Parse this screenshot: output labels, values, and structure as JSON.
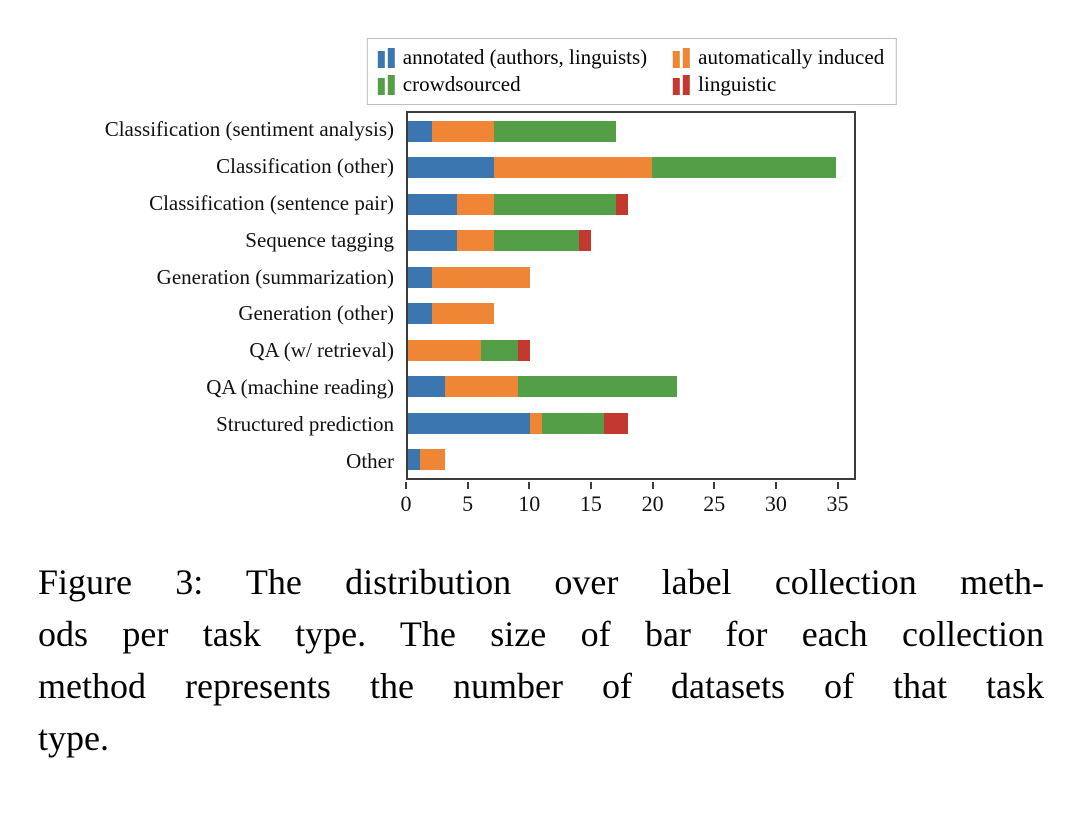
{
  "figure": {
    "caption_lines": [
      "Figure 3: The distribution over label collection meth-",
      "ods per task type. The size of bar for each collection",
      "method represents the number of datasets of that task",
      "type."
    ],
    "caption_text": "Figure 3: The distribution over label collection methods per task type. The size of bar for each collection method represents the number of datasets of that task type."
  },
  "chart_data": {
    "type": "bar",
    "orientation": "horizontal",
    "stacked": true,
    "title": "",
    "xlabel": "",
    "ylabel": "",
    "xlim": [
      0,
      36.5
    ],
    "xticks": [
      0,
      5,
      10,
      15,
      20,
      25,
      30,
      35
    ],
    "grid": false,
    "legend_position": "top",
    "categories": [
      "Classification (sentiment analysis)",
      "Classification (other)",
      "Classification (sentence pair)",
      "Sequence tagging",
      "Generation (summarization)",
      "Generation (other)",
      "QA (w/ retrieval)",
      "QA (machine reading)",
      "Structured prediction",
      "Other"
    ],
    "series": [
      {
        "name": "annotated (authors, linguists)",
        "color": "#3c76b0",
        "values": [
          2,
          7,
          4,
          4,
          2,
          2,
          0,
          3,
          10,
          1
        ]
      },
      {
        "name": "automatically induced",
        "color": "#ee8635",
        "values": [
          5,
          13,
          3,
          3,
          8,
          5,
          6,
          6,
          1,
          2
        ]
      },
      {
        "name": "crowdsourced",
        "color": "#539e46",
        "values": [
          10,
          15,
          10,
          7,
          0,
          0,
          3,
          13,
          5,
          0
        ]
      },
      {
        "name": "linguistic",
        "color": "#c4392f",
        "values": [
          0,
          0,
          1,
          1,
          0,
          0,
          1,
          0,
          2,
          0
        ]
      }
    ]
  }
}
